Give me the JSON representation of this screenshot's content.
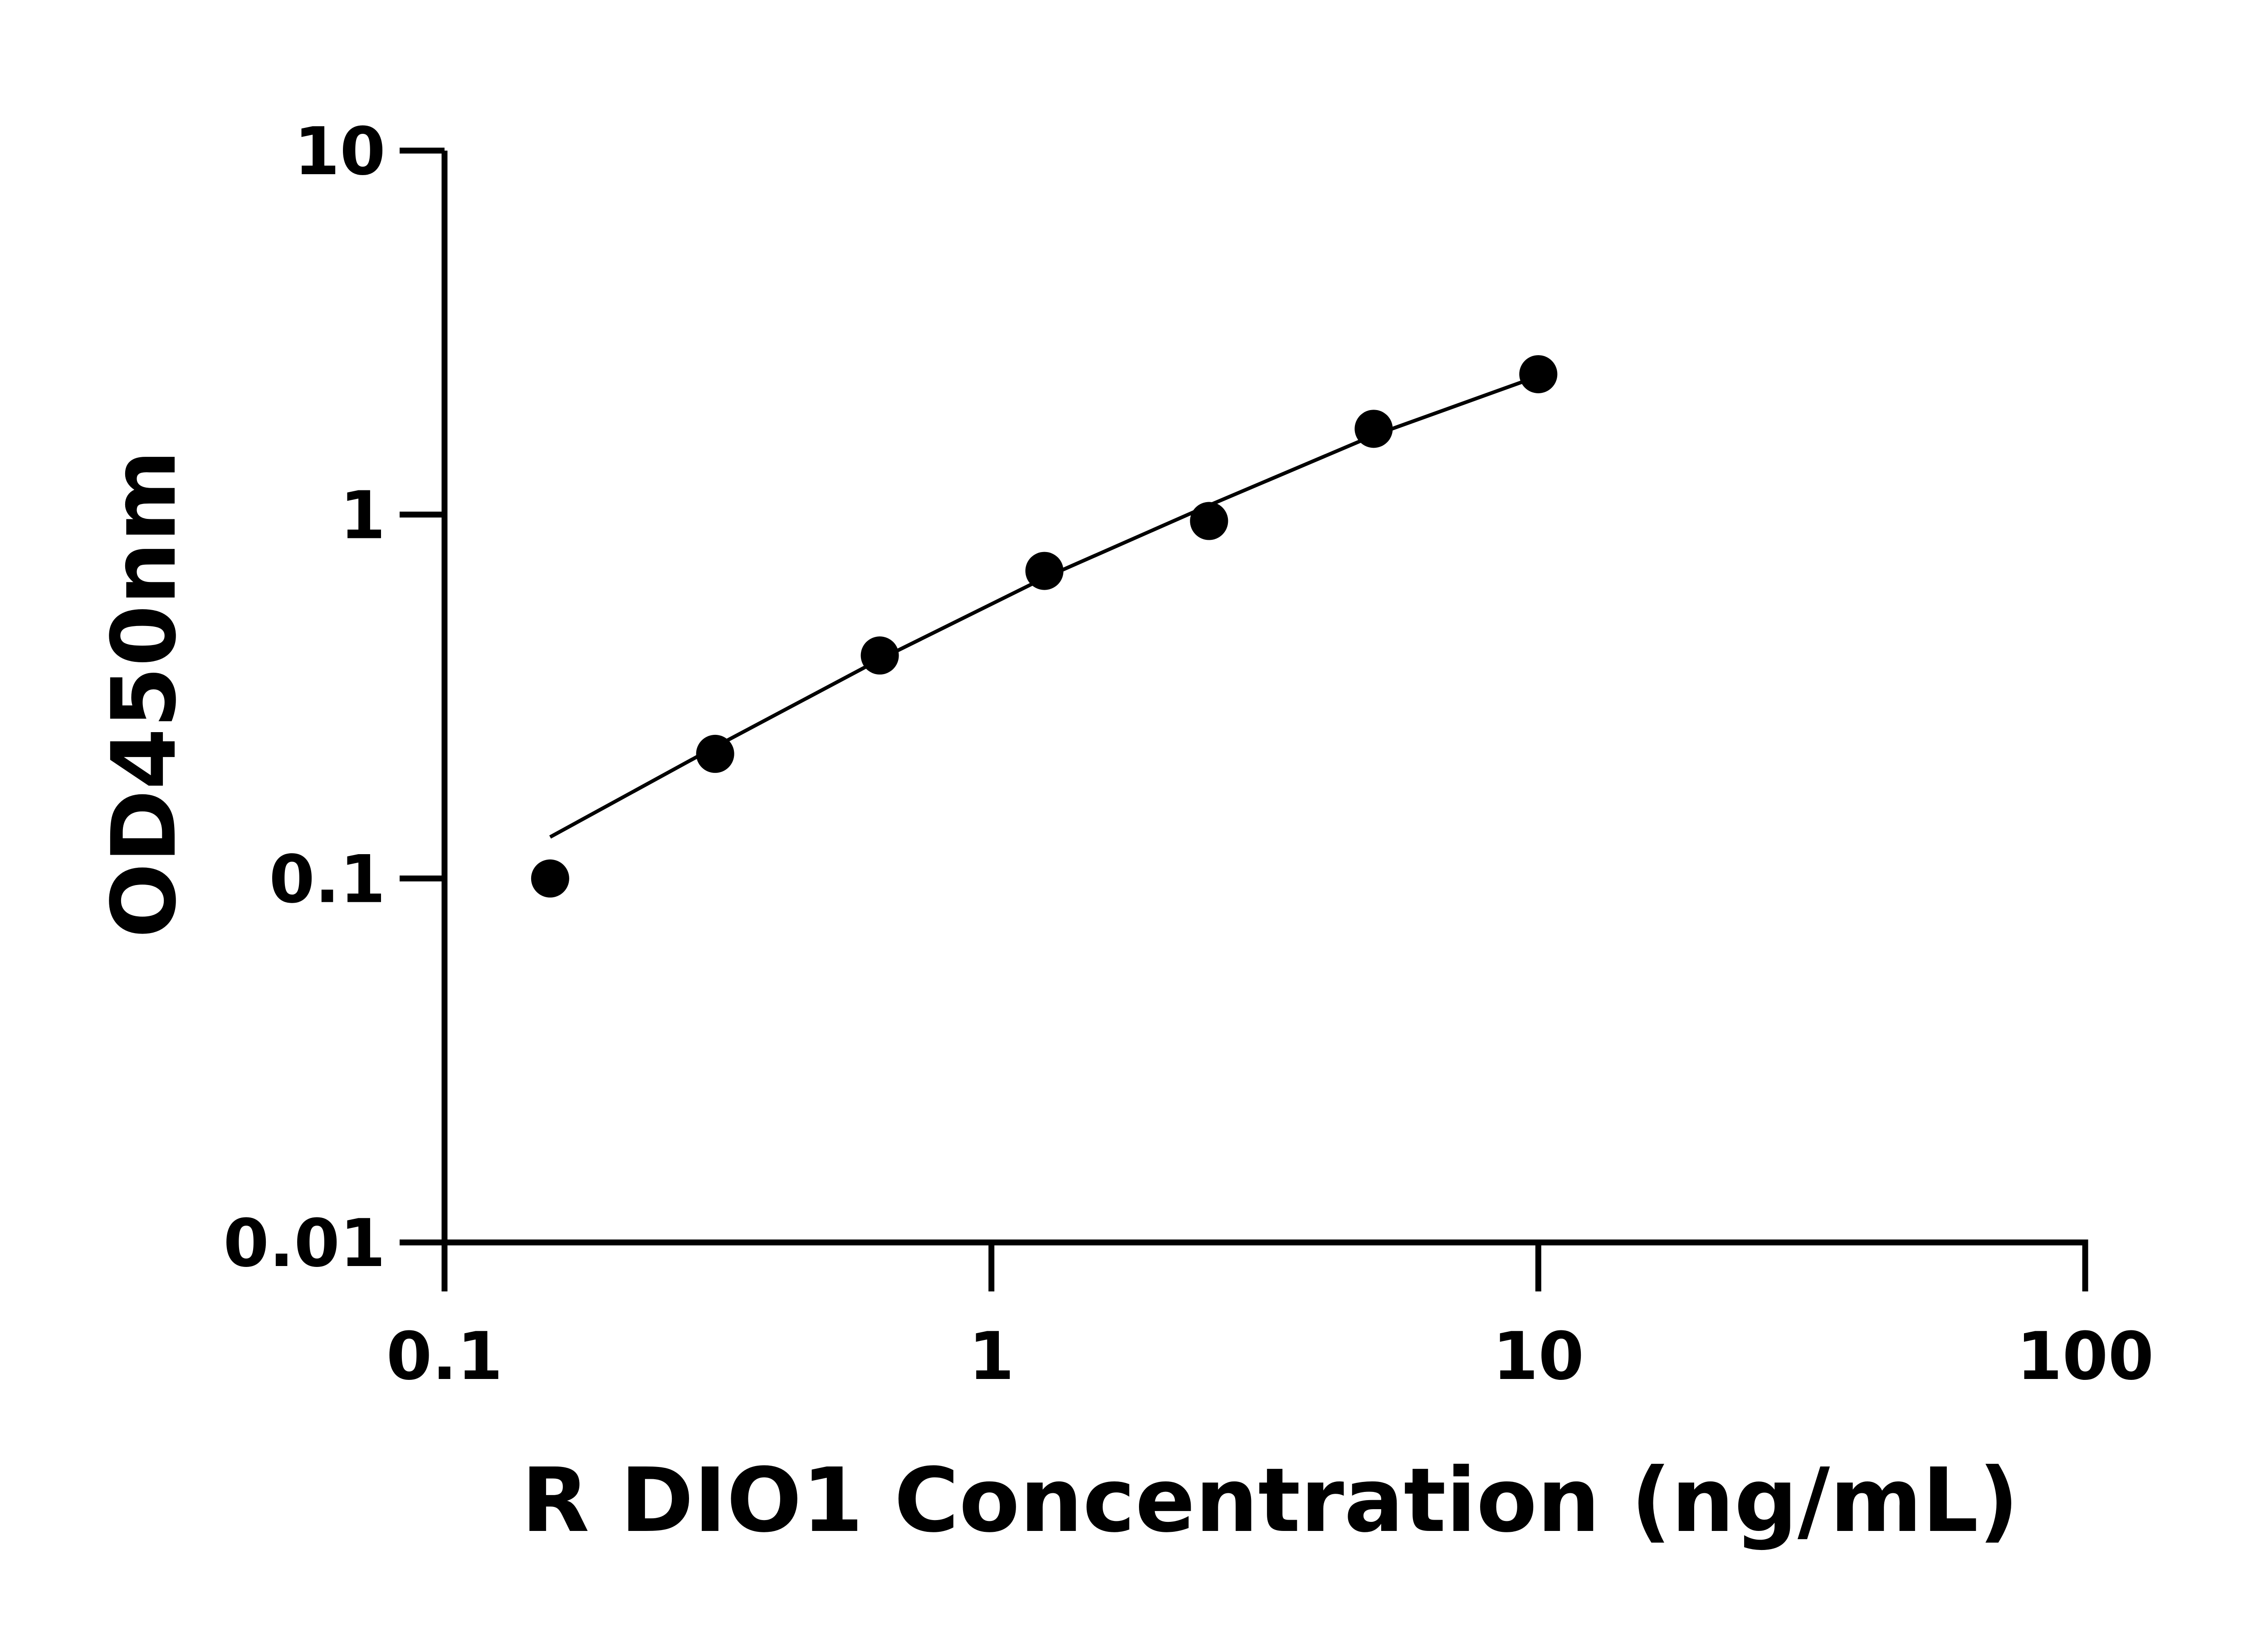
{
  "chart_data": {
    "type": "scatter",
    "title": "",
    "xlabel": "R DIO1 Concentration (ng/mL)",
    "ylabel": "OD450nm",
    "x_scale": "log",
    "y_scale": "log",
    "xlim": [
      0.1,
      100
    ],
    "ylim": [
      0.01,
      10
    ],
    "x_ticks": [
      0.1,
      1,
      10,
      100
    ],
    "x_tick_labels": [
      "0.1",
      "1",
      "10",
      "100"
    ],
    "y_ticks": [
      0.01,
      0.1,
      1,
      10
    ],
    "y_tick_labels": [
      "0.01",
      "0.1",
      "1",
      "10"
    ],
    "grid": false,
    "legend": "none",
    "marker_color": "#000000",
    "points": [
      {
        "x": 0.156,
        "y": 0.1
      },
      {
        "x": 0.3125,
        "y": 0.22
      },
      {
        "x": 0.625,
        "y": 0.41
      },
      {
        "x": 1.25,
        "y": 0.7
      },
      {
        "x": 2.5,
        "y": 0.96
      },
      {
        "x": 5,
        "y": 1.72
      },
      {
        "x": 10,
        "y": 2.43
      }
    ],
    "fit_curve": [
      {
        "x": 0.156,
        "y": 0.13
      },
      {
        "x": 0.3125,
        "y": 0.23
      },
      {
        "x": 0.625,
        "y": 0.4
      },
      {
        "x": 1.25,
        "y": 0.67
      },
      {
        "x": 2.5,
        "y": 1.06
      },
      {
        "x": 5,
        "y": 1.65
      },
      {
        "x": 10,
        "y": 2.4
      }
    ]
  }
}
